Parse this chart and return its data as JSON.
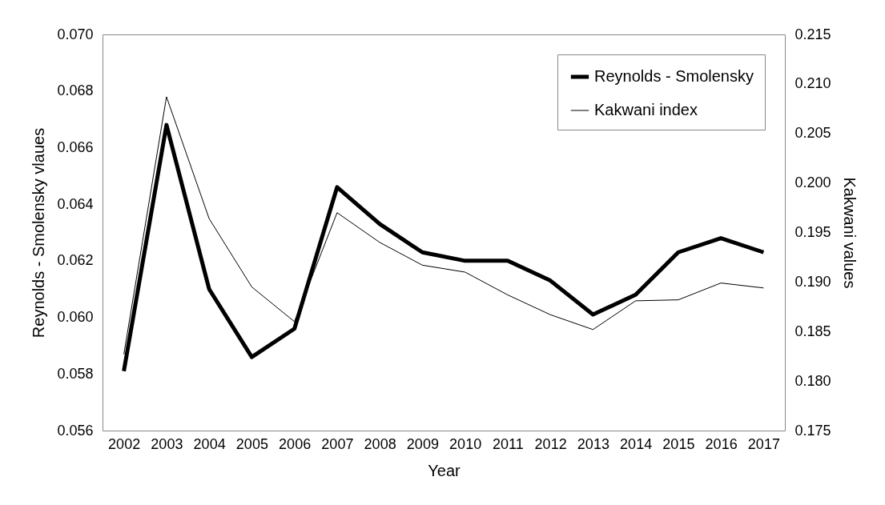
{
  "chart_data": {
    "type": "line",
    "xlabel": "Year",
    "ylabel": "Reynolds - Smolensky vlaues",
    "y2label": "Kakwani values",
    "categories": [
      "2002",
      "2003",
      "2004",
      "2005",
      "2006",
      "2007",
      "2008",
      "2009",
      "2010",
      "2011",
      "2012",
      "2013",
      "2014",
      "2015",
      "2016",
      "2017"
    ],
    "series": [
      {
        "name": "Reynolds - Smolensky",
        "color": "#000000",
        "values": [
          0.0581,
          0.0668,
          0.061,
          0.0586,
          0.0596,
          0.0646,
          0.0633,
          0.0623,
          0.062,
          0.062,
          0.0613,
          0.0601,
          0.0608,
          0.0623,
          0.0628,
          0.0623
        ]
      },
      {
        "name": "Kakwani index",
        "color": "#000000",
        "axis": "y2",
        "values": [
          0.1827,
          0.2087,
          0.1964,
          0.1895,
          0.186,
          0.197,
          0.194,
          0.1917,
          0.191,
          0.1887,
          0.1867,
          0.1852,
          0.1881,
          0.1882,
          0.1899,
          0.1894
        ]
      }
    ],
    "ylim": [
      0.056,
      0.07
    ],
    "yticks": [
      {
        "value": 0.056,
        "label": "0.056"
      },
      {
        "value": 0.058,
        "label": "0.058"
      },
      {
        "value": 0.06,
        "label": "0.060"
      },
      {
        "value": 0.062,
        "label": "0.062"
      },
      {
        "value": 0.064,
        "label": "0.064"
      },
      {
        "value": 0.066,
        "label": "0.066"
      },
      {
        "value": 0.068,
        "label": "0.068"
      },
      {
        "value": 0.07,
        "label": "0.070"
      }
    ],
    "y2lim": [
      0.175,
      0.215
    ],
    "y2ticks": [
      {
        "value": 0.175,
        "label": "0.175"
      },
      {
        "value": 0.18,
        "label": "0.180"
      },
      {
        "value": 0.185,
        "label": "0.185"
      },
      {
        "value": 0.19,
        "label": "0.190"
      },
      {
        "value": 0.195,
        "label": "0.195"
      },
      {
        "value": 0.2,
        "label": "0.200"
      },
      {
        "value": 0.205,
        "label": "0.205"
      },
      {
        "value": 0.21,
        "label": "0.210"
      },
      {
        "value": 0.215,
        "label": "0.215"
      }
    ],
    "grid": false,
    "legend": "top right",
    "marker": "none",
    "line_style": "solid"
  }
}
